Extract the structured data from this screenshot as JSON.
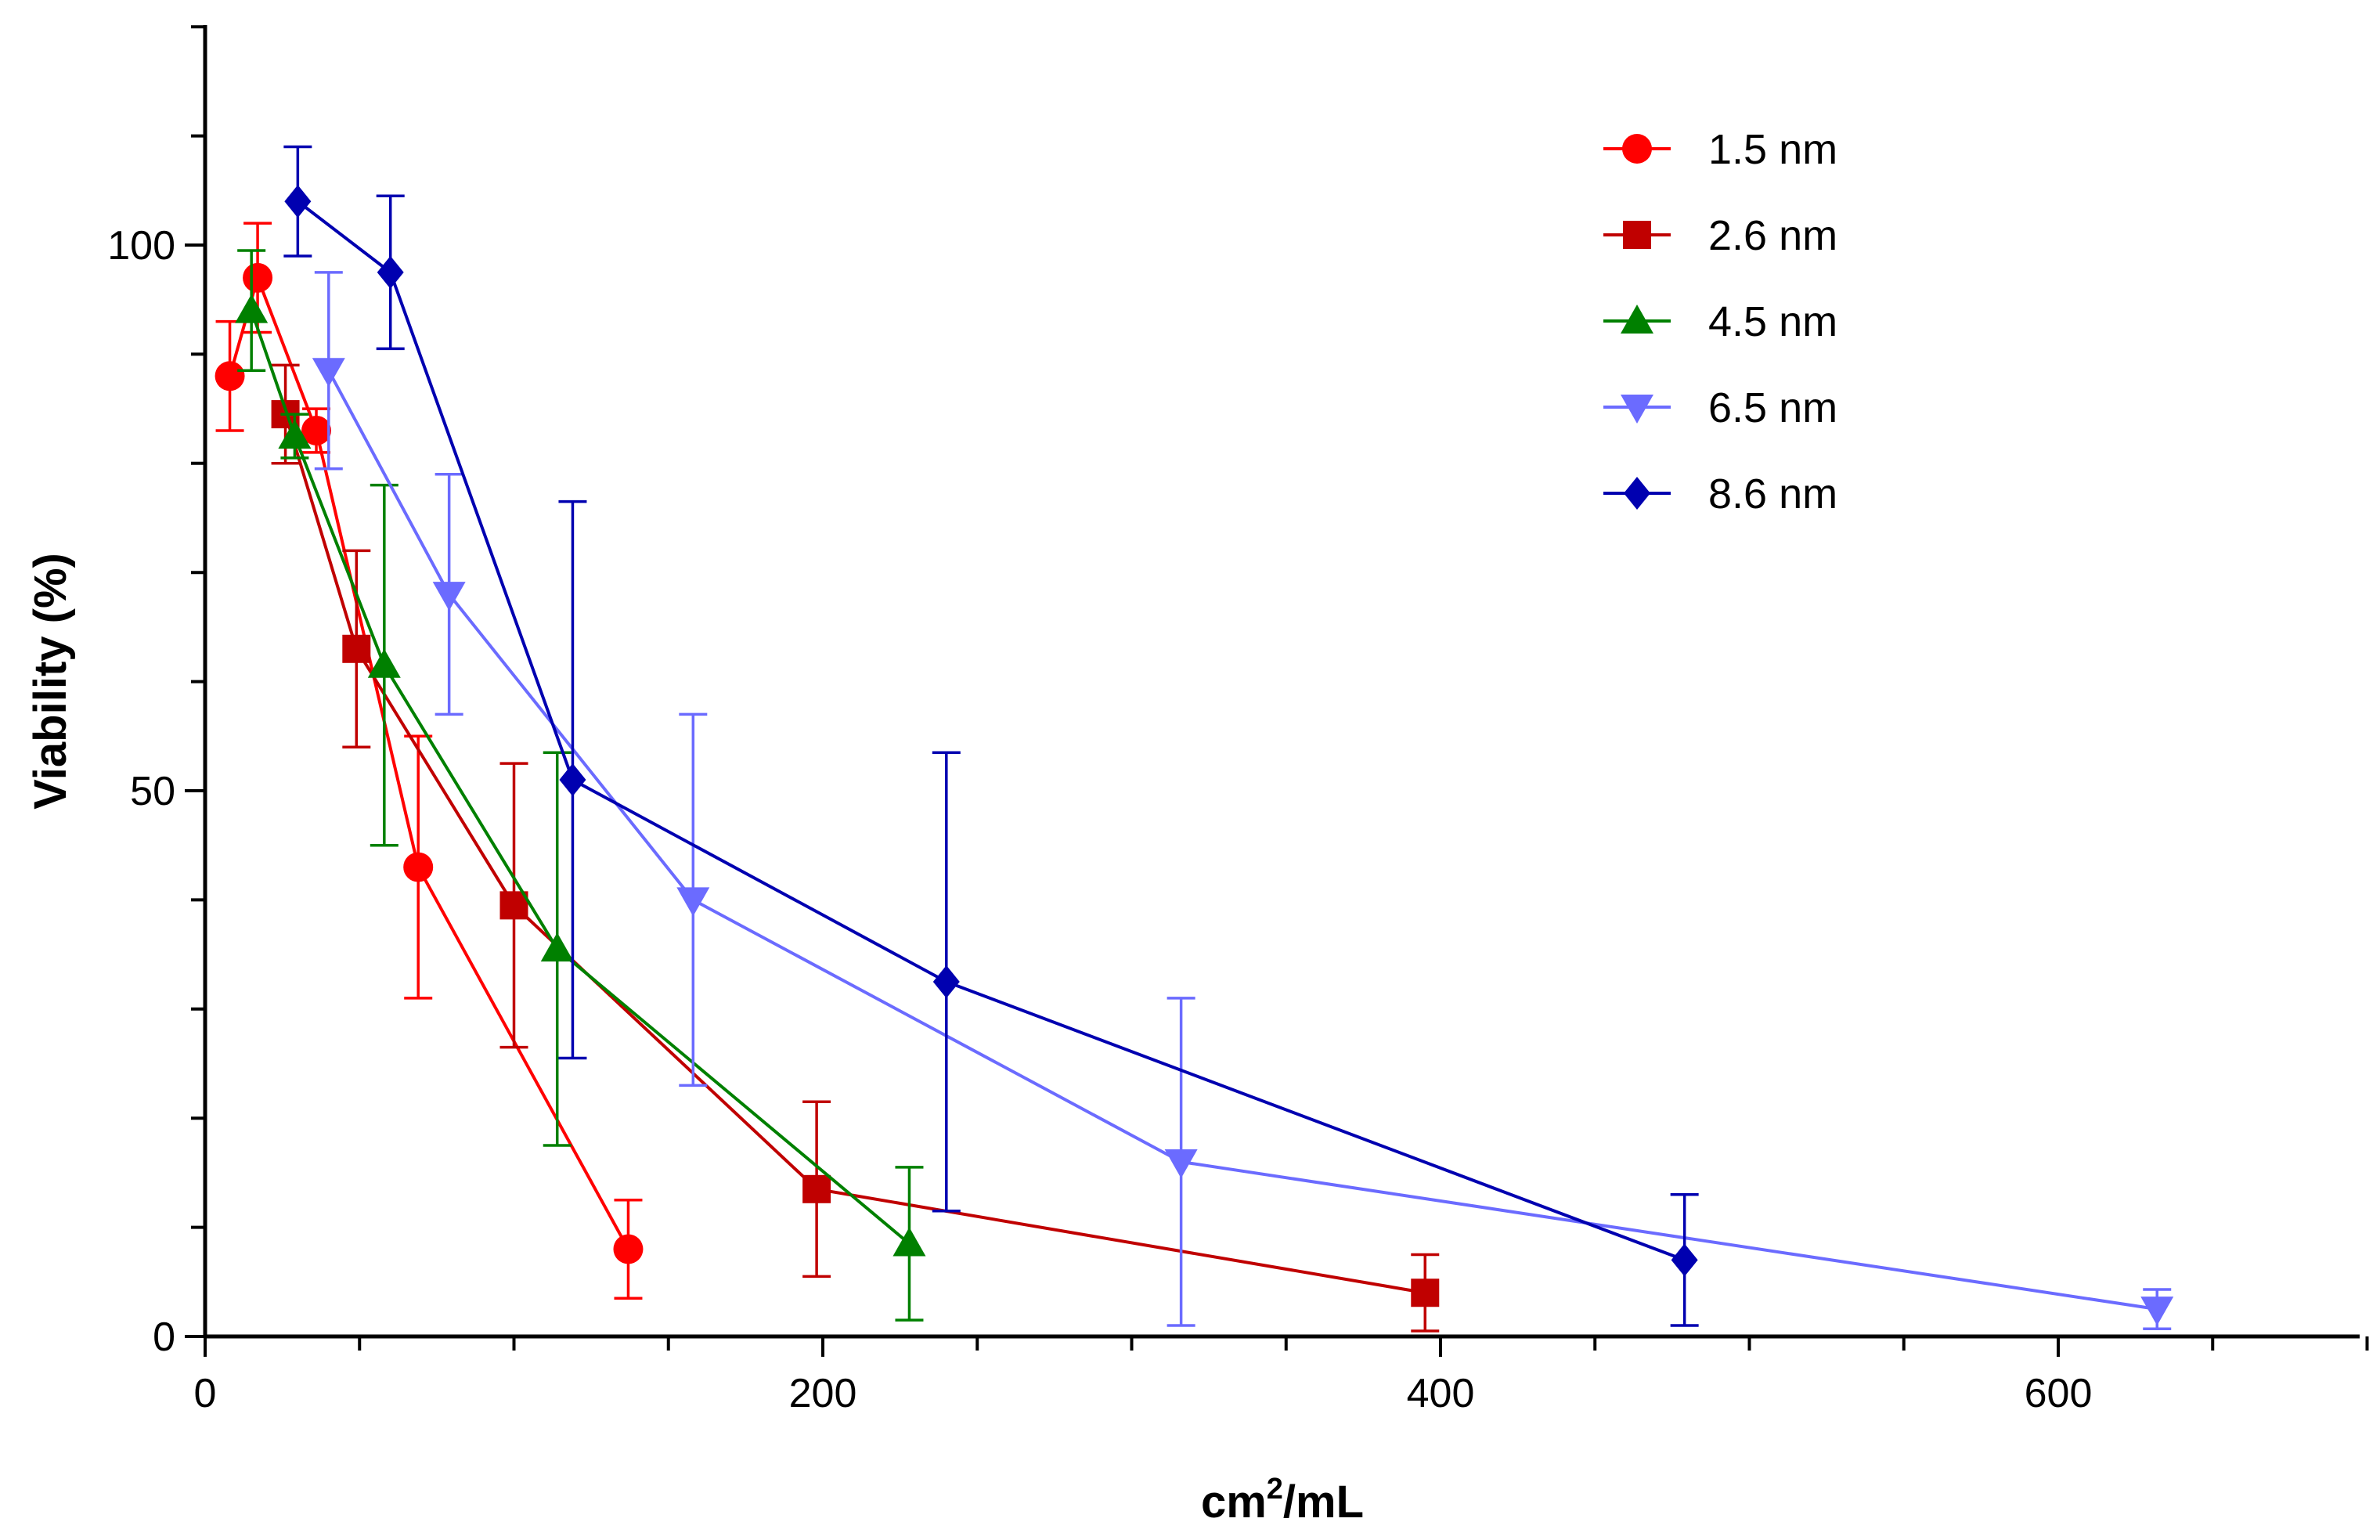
{
  "chart_data": {
    "type": "line",
    "title": "",
    "xlabel_base": "cm",
    "xlabel_sup": "2",
    "xlabel_tail": "/mL",
    "ylabel": "Viability (%)",
    "xlim": [
      0,
      700
    ],
    "ylim": [
      0,
      120
    ],
    "x_ticks": [
      0,
      200,
      400,
      600
    ],
    "y_ticks": [
      0,
      50,
      100
    ],
    "legend_position": "top-right",
    "series": [
      {
        "name": "1.5 nm",
        "color": "#ff0000",
        "marker": "circle",
        "x": [
          8,
          17,
          36,
          69,
          137
        ],
        "y": [
          88,
          97,
          83,
          43,
          8
        ],
        "err": [
          5,
          5,
          2,
          12,
          4.5
        ]
      },
      {
        "name": "2.6 nm",
        "color": "#c00000",
        "marker": "square",
        "x": [
          26,
          49,
          100,
          198,
          395
        ],
        "y": [
          84.5,
          63,
          39.5,
          13.5,
          4
        ],
        "err": [
          4.5,
          9,
          13,
          8,
          3.5
        ]
      },
      {
        "name": "4.5 nm",
        "color": "#008000",
        "marker": "triangle-up",
        "x": [
          15,
          29,
          58,
          114,
          228
        ],
        "y": [
          94,
          82.5,
          61.5,
          35.5,
          8.5
        ],
        "err": [
          5.5,
          2,
          16.5,
          18,
          7
        ]
      },
      {
        "name": "6.5 nm",
        "color": "#6b6bff",
        "marker": "triangle-down",
        "x": [
          40,
          79,
          158,
          316,
          632
        ],
        "y": [
          88.5,
          68,
          40,
          16,
          2.5
        ],
        "err": [
          9,
          11,
          17,
          15,
          1.8
        ]
      },
      {
        "name": "8.6 nm",
        "color": "#0000b0",
        "marker": "diamond",
        "x": [
          30,
          60,
          119,
          240,
          479
        ],
        "y": [
          104,
          97.5,
          51,
          32.5,
          7
        ],
        "err": [
          5,
          7,
          25.5,
          21,
          6
        ]
      }
    ]
  }
}
